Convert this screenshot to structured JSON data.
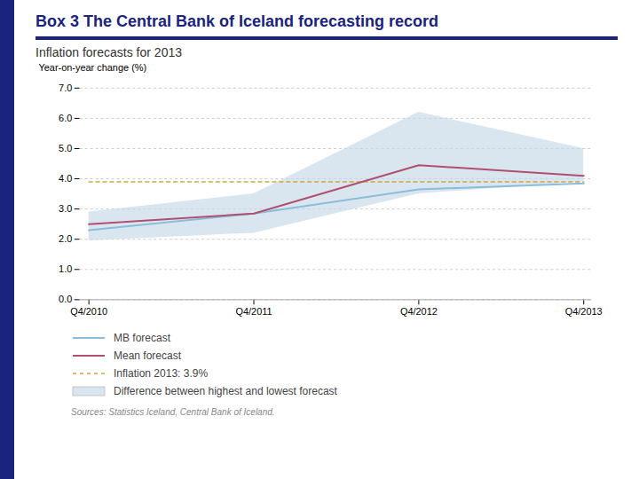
{
  "chart_data": {
    "type": "line",
    "title": "Box 3 The Central Bank of Iceland forecasting record",
    "subtitle": "Inflation forecasts for 2013",
    "ylabel": "Year-on-year change (%)",
    "source": "Sources: Statistics Iceland, Central Bank of Iceland.",
    "categories": [
      "Q4/2010",
      "Q4/2011",
      "Q4/2012",
      "Q4/2013"
    ],
    "series": [
      {
        "name": "MB forecast",
        "color": "#8bbdda",
        "line_style": "solid",
        "values": [
          2.3,
          2.85,
          3.65,
          3.85
        ]
      },
      {
        "name": "Mean forecast",
        "color": "#b05070",
        "line_style": "solid",
        "values": [
          2.5,
          2.85,
          4.45,
          4.1
        ]
      },
      {
        "name": "Inflation 2013: 3.9%",
        "color": "#d4a840",
        "line_style": "dashed",
        "values": [
          3.9,
          3.9,
          3.9,
          3.9
        ]
      },
      {
        "name": "Difference between highest and lowest forecast",
        "type": "band",
        "color": "#c5d9e8",
        "upper": [
          2.9,
          3.5,
          6.2,
          5.0
        ],
        "lower": [
          1.95,
          2.2,
          3.5,
          3.9
        ]
      }
    ],
    "ylim": [
      0.0,
      7.0
    ],
    "yticks": [
      {
        "value": 0,
        "label": "0.0"
      },
      {
        "value": 1,
        "label": "1.0"
      },
      {
        "value": 2,
        "label": "2.0"
      },
      {
        "value": 3,
        "label": "3.0"
      },
      {
        "value": 4,
        "label": "4.0"
      },
      {
        "value": 5,
        "label": "5.0"
      },
      {
        "value": 6,
        "label": "6.0"
      },
      {
        "value": 7,
        "label": "7.0"
      }
    ],
    "grid": true,
    "legend": "bottom"
  }
}
